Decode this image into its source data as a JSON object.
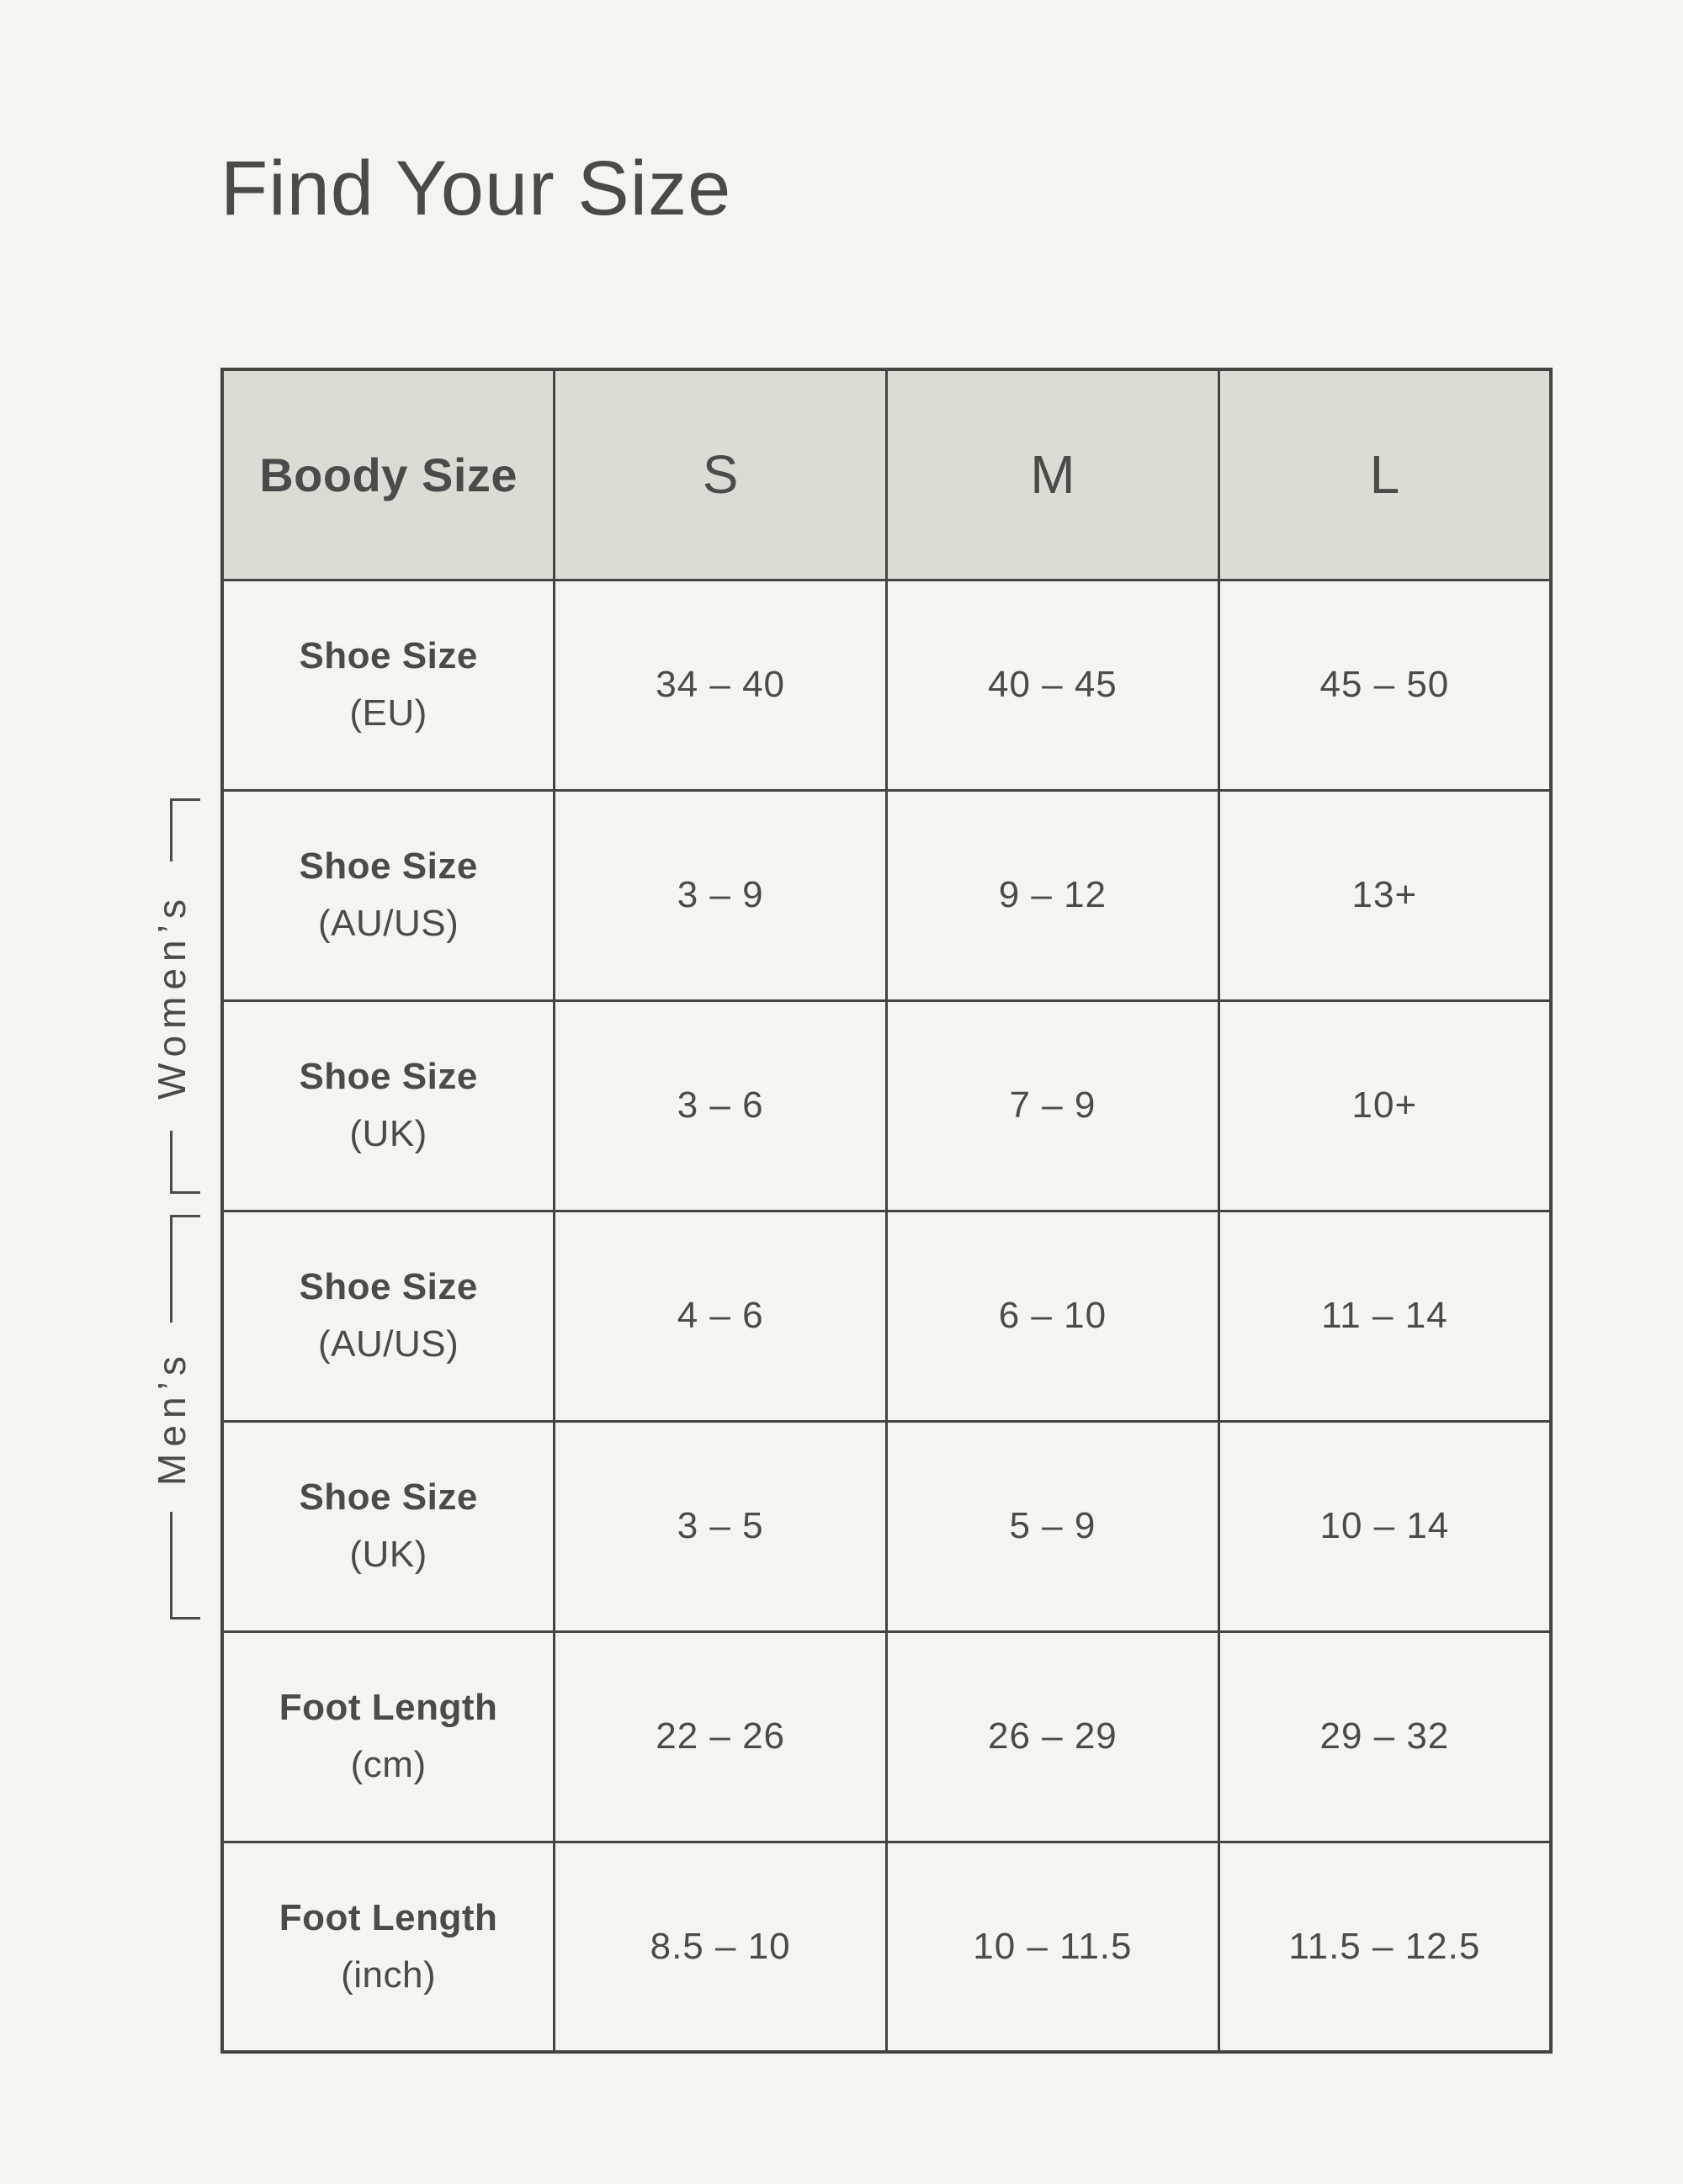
{
  "page": {
    "title": "Find Your Size"
  },
  "colors": {
    "background": "#f5f4ee",
    "header_background": "#dcdcd4",
    "border": "#454440",
    "text": "#4c4b49"
  },
  "table": {
    "header": {
      "corner": "Boody Size",
      "sizes": [
        "S",
        "M",
        "L"
      ]
    },
    "groups": {
      "womens": "Women’s",
      "mens": "Men’s"
    },
    "rows": [
      {
        "label": "Shoe Size",
        "unit": "(EU)",
        "values": [
          "34 – 40",
          "40 – 45",
          "45 – 50"
        ]
      },
      {
        "label": "Shoe Size",
        "unit": "(AU/US)",
        "values": [
          "3 – 9",
          "9 – 12",
          "13+"
        ]
      },
      {
        "label": "Shoe Size",
        "unit": "(UK)",
        "values": [
          "3 – 6",
          "7 – 9",
          "10+"
        ]
      },
      {
        "label": "Shoe Size",
        "unit": "(AU/US)",
        "values": [
          "4 – 6",
          "6 – 10",
          "11 – 14"
        ]
      },
      {
        "label": "Shoe Size",
        "unit": "(UK)",
        "values": [
          "3 – 5",
          "5 – 9",
          "10 – 14"
        ]
      },
      {
        "label": "Foot Length",
        "unit": "(cm)",
        "values": [
          "22 – 26",
          "26 – 29",
          "29 – 32"
        ]
      },
      {
        "label": "Foot Length",
        "unit": "(inch)",
        "values": [
          "8.5 – 10",
          "10 – 11.5",
          "11.5 – 12.5"
        ]
      }
    ]
  }
}
